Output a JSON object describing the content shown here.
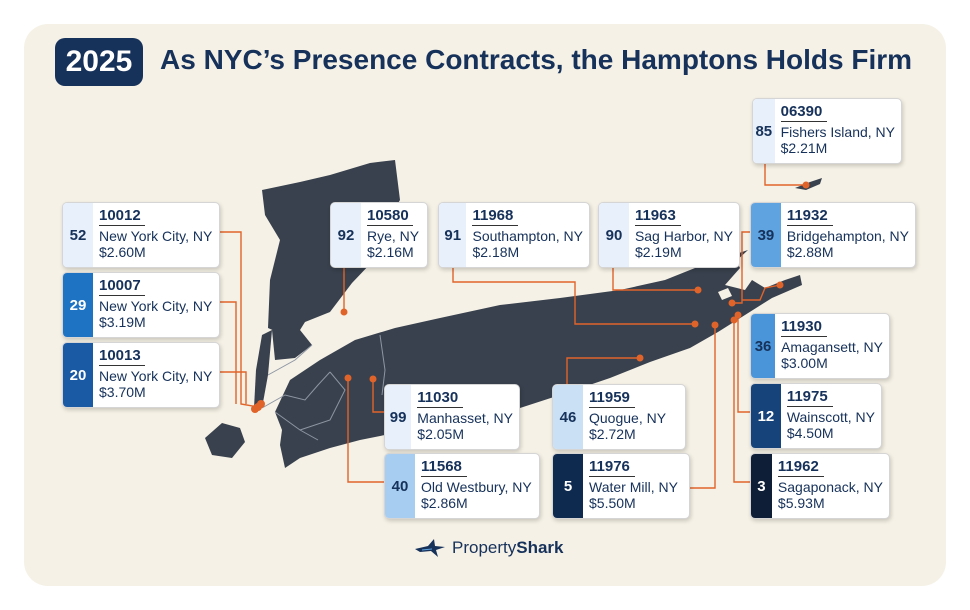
{
  "year": "2025",
  "title": "As NYC’s Presence Contracts, the Hamptons Holds Firm",
  "brand": {
    "name_light": "Property",
    "name_bold": "Shark",
    "icon": "shark-jet-icon"
  },
  "colors": {
    "navy": "#16315a",
    "land": "#39414e",
    "connector": "#e0642a",
    "background": "#f5f1e6"
  },
  "labels": [
    {
      "rank": "52",
      "zip": "10012",
      "town": "New York City, NY",
      "price": "$2.60M",
      "rank_color": "#e8f1fb",
      "rank_text": "#16315a"
    },
    {
      "rank": "29",
      "zip": "10007",
      "town": "New York City, NY",
      "price": "$3.19M",
      "rank_color": "#1f73c3",
      "rank_text": "#ffffff"
    },
    {
      "rank": "20",
      "zip": "10013",
      "town": "New York City, NY",
      "price": "$3.70M",
      "rank_color": "#1a5aa4",
      "rank_text": "#ffffff"
    },
    {
      "rank": "92",
      "zip": "10580",
      "town": "Rye, NY",
      "price": "$2.16M",
      "rank_color": "#e8f1fb",
      "rank_text": "#16315a"
    },
    {
      "rank": "91",
      "zip": "11968",
      "town": "Southampton, NY",
      "price": "$2.18M",
      "rank_color": "#e8f1fb",
      "rank_text": "#16315a"
    },
    {
      "rank": "90",
      "zip": "11963",
      "town": "Sag Harbor, NY",
      "price": "$2.19M",
      "rank_color": "#e8f1fb",
      "rank_text": "#16315a"
    },
    {
      "rank": "39",
      "zip": "11932",
      "town": "Bridgehampton, NY",
      "price": "$2.88M",
      "rank_color": "#5fa3e0",
      "rank_text": "#16315a"
    },
    {
      "rank": "85",
      "zip": "06390",
      "town": "Fishers Island, NY",
      "price": "$2.21M",
      "rank_color": "#e8f1fb",
      "rank_text": "#16315a"
    },
    {
      "rank": "36",
      "zip": "11930",
      "town": "Amagansett, NY",
      "price": "$3.00M",
      "rank_color": "#4a95d9",
      "rank_text": "#16315a"
    },
    {
      "rank": "12",
      "zip": "11975",
      "town": "Wainscott, NY",
      "price": "$4.50M",
      "rank_color": "#16437a",
      "rank_text": "#ffffff"
    },
    {
      "rank": "3",
      "zip": "11962",
      "town": "Sagaponack, NY",
      "price": "$5.93M",
      "rank_color": "#0d1e36",
      "rank_text": "#ffffff"
    },
    {
      "rank": "99",
      "zip": "11030",
      "town": "Manhasset, NY",
      "price": "$2.05M",
      "rank_color": "#e8f1fb",
      "rank_text": "#16315a"
    },
    {
      "rank": "40",
      "zip": "11568",
      "town": "Old Westbury, NY",
      "price": "$2.86M",
      "rank_color": "#a7cdf0",
      "rank_text": "#16315a"
    },
    {
      "rank": "46",
      "zip": "11959",
      "town": "Quogue, NY",
      "price": "$2.72M",
      "rank_color": "#c9e0f5",
      "rank_text": "#16315a"
    },
    {
      "rank": "5",
      "zip": "11976",
      "town": "Water Mill, NY",
      "price": "$5.50M",
      "rank_color": "#0f2a4f",
      "rank_text": "#ffffff"
    }
  ]
}
